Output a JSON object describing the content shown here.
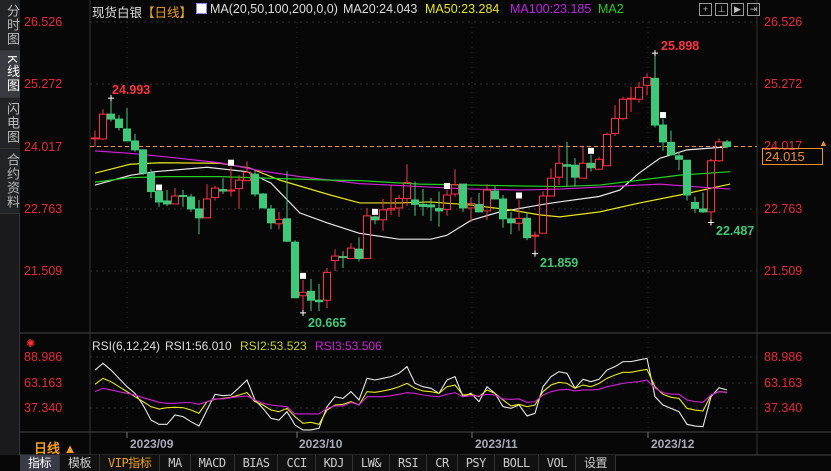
{
  "sidebar": {
    "tabs": [
      {
        "label": "分时图"
      },
      {
        "label": "K线图",
        "active": true
      },
      {
        "label": "闪电图"
      },
      {
        "label": "合约资料"
      }
    ]
  },
  "header": {
    "instrument": "现货白银",
    "period": "【日线】",
    "ma_params": "MA(20,50,100,200,0,0)",
    "ma20": "MA20:24.043",
    "ma50": "MA50:23.284",
    "ma100": "MA100:23.185",
    "ma200": "MA2",
    "toolbar_icons": [
      "crosshair-icon",
      "interval-icon",
      "play-icon",
      "shift-right-icon"
    ]
  },
  "colors": {
    "up": "#ff3040",
    "down": "#3ec87a",
    "ma20": "#e8e8e8",
    "ma50": "#e6e61a",
    "ma100": "#d020d8",
    "ma200": "#20d020",
    "rsi1": "#e8e8e8",
    "rsi2": "#e6e61a",
    "rsi3": "#d020d8",
    "last_price": "#f0902a",
    "axis_label": "#e8283c"
  },
  "price_axis": {
    "ticks": [
      "26.526",
      "25.272",
      "24.017",
      "22.763",
      "21.509"
    ],
    "last_price": "24.015"
  },
  "annotations": {
    "high1": "24.993",
    "high2": "25.898",
    "low1": "20.665",
    "low2": "21.859",
    "low3": "22.487"
  },
  "rsi": {
    "title": "RSI(6,12,24)",
    "rsi1": "RSI1:56.010",
    "rsi2": "RSI2:53.523",
    "rsi3": "RSI3:53.506",
    "ticks": [
      "88.986",
      "63.163",
      "37.340"
    ]
  },
  "x_axis": {
    "period_label": "日线 ▲",
    "dates": [
      "2023/09",
      "2023/10",
      "2023/11",
      "2023/12"
    ]
  },
  "bottom_tabs": [
    "指标",
    "模板",
    "VIP指标",
    "MA",
    "MACD",
    "BIAS",
    "CCI",
    "KDJ",
    "LW&",
    "RSI",
    "CR",
    "PSY",
    "BOLL",
    "VOL",
    "设置"
  ],
  "chart_data": {
    "type": "candlestick",
    "candles_ohlc": [
      [
        24.19,
        24.34,
        24.01,
        24.19
      ],
      [
        24.17,
        24.77,
        24.15,
        24.67
      ],
      [
        24.67,
        24.993,
        24.52,
        24.57
      ],
      [
        24.57,
        24.65,
        24.34,
        24.4
      ],
      [
        24.37,
        24.79,
        24.13,
        24.13
      ],
      [
        24.13,
        24.27,
        23.91,
        23.95
      ],
      [
        23.95,
        23.95,
        23.44,
        23.49
      ],
      [
        23.48,
        23.56,
        22.98,
        23.11
      ],
      [
        23.11,
        23.11,
        22.8,
        22.9
      ],
      [
        22.92,
        23.14,
        22.82,
        22.86
      ],
      [
        22.86,
        23.18,
        22.86,
        23.02
      ],
      [
        23.03,
        23.14,
        22.8,
        23.01
      ],
      [
        23.0,
        23.06,
        22.7,
        22.76
      ],
      [
        22.76,
        22.94,
        22.25,
        22.58
      ],
      [
        22.58,
        23.26,
        22.58,
        22.96
      ],
      [
        22.99,
        23.23,
        22.93,
        23.18
      ],
      [
        23.15,
        23.38,
        23.06,
        23.12
      ],
      [
        23.12,
        23.61,
        23.01,
        23.14
      ],
      [
        23.17,
        23.44,
        22.76,
        23.34
      ],
      [
        23.33,
        23.72,
        23.33,
        23.5
      ],
      [
        23.46,
        23.54,
        23.01,
        23.06
      ],
      [
        23.06,
        23.08,
        22.78,
        22.78
      ],
      [
        22.76,
        22.84,
        22.35,
        22.48
      ],
      [
        22.46,
        22.7,
        22.35,
        22.55
      ],
      [
        22.56,
        23.52,
        22.09,
        22.11
      ],
      [
        22.09,
        22.13,
        20.97,
        20.97
      ],
      [
        21.01,
        21.33,
        20.665,
        21.08
      ],
      [
        21.1,
        21.35,
        20.7,
        20.92
      ],
      [
        20.92,
        21.25,
        20.7,
        20.89
      ],
      [
        20.92,
        21.57,
        20.76,
        21.48
      ],
      [
        21.72,
        21.95,
        21.51,
        21.81
      ],
      [
        21.8,
        21.91,
        21.57,
        21.78
      ],
      [
        21.76,
        22.07,
        21.76,
        21.97
      ],
      [
        21.95,
        22.19,
        21.7,
        21.76
      ],
      [
        21.76,
        22.78,
        21.76,
        22.62
      ],
      [
        22.6,
        22.62,
        22.45,
        22.54
      ],
      [
        22.54,
        22.96,
        22.32,
        22.74
      ],
      [
        22.74,
        23.24,
        22.64,
        22.77
      ],
      [
        22.78,
        23.04,
        22.6,
        22.97
      ],
      [
        22.97,
        23.66,
        22.82,
        23.29
      ],
      [
        22.94,
        23.31,
        22.62,
        22.85
      ],
      [
        22.85,
        23.16,
        22.62,
        22.81
      ],
      [
        22.84,
        22.98,
        22.52,
        22.8
      ],
      [
        22.77,
        23.11,
        22.4,
        22.72
      ],
      [
        22.75,
        23.14,
        22.62,
        23.04
      ],
      [
        23.06,
        23.56,
        23.01,
        23.25
      ],
      [
        23.26,
        23.26,
        22.7,
        22.78
      ],
      [
        22.78,
        22.99,
        22.5,
        22.87
      ],
      [
        22.85,
        23.08,
        22.7,
        22.7
      ],
      [
        22.72,
        23.26,
        22.54,
        23.14
      ],
      [
        23.12,
        23.22,
        22.96,
        22.96
      ],
      [
        22.96,
        23.04,
        22.38,
        22.56
      ],
      [
        22.56,
        22.7,
        22.25,
        22.48
      ],
      [
        22.47,
        22.95,
        22.32,
        22.57
      ],
      [
        22.57,
        22.7,
        22.13,
        22.18
      ],
      [
        22.21,
        22.3,
        21.859,
        22.23
      ],
      [
        22.27,
        23.11,
        22.27,
        23.02
      ],
      [
        23.02,
        23.58,
        23.01,
        23.38
      ],
      [
        23.4,
        24.05,
        23.24,
        23.68
      ],
      [
        23.65,
        24.11,
        23.21,
        23.62
      ],
      [
        23.64,
        23.78,
        23.21,
        23.4
      ],
      [
        23.38,
        24.01,
        23.38,
        23.68
      ],
      [
        23.68,
        23.85,
        23.51,
        23.59
      ],
      [
        23.56,
        23.81,
        23.54,
        23.76
      ],
      [
        23.63,
        24.3,
        23.63,
        24.26
      ],
      [
        24.28,
        24.85,
        24.23,
        24.58
      ],
      [
        24.58,
        25.02,
        24.55,
        24.97
      ],
      [
        24.97,
        25.22,
        24.71,
        24.99
      ],
      [
        24.97,
        25.32,
        24.9,
        25.21
      ],
      [
        25.25,
        25.49,
        25.05,
        25.41
      ],
      [
        25.39,
        25.898,
        24.4,
        24.45
      ],
      [
        24.45,
        24.57,
        23.93,
        24.11
      ],
      [
        24.1,
        24.34,
        23.85,
        23.85
      ],
      [
        23.83,
        23.91,
        23.54,
        23.76
      ],
      [
        23.74,
        23.74,
        22.93,
        23.04
      ],
      [
        22.89,
        23.01,
        22.68,
        22.77
      ],
      [
        22.76,
        23.09,
        22.68,
        22.7
      ],
      [
        22.7,
        23.77,
        22.487,
        23.73
      ],
      [
        23.73,
        24.18,
        23.71,
        24.11
      ],
      [
        24.11,
        24.15,
        23.98,
        24.015
      ]
    ],
    "marked_candles": [
      8,
      17,
      26,
      35,
      44,
      53,
      62,
      71
    ],
    "ma_series": {
      "MA20": [
        [
          0,
          23.24
        ],
        [
          4.5,
          23.44
        ],
        [
          7.5,
          23.51
        ],
        [
          14,
          23.6
        ],
        [
          19,
          23.51
        ],
        [
          22,
          23.28
        ],
        [
          25.6,
          22.68
        ],
        [
          29,
          22.48
        ],
        [
          33,
          22.27
        ],
        [
          38,
          22.15
        ],
        [
          42,
          22.15
        ],
        [
          44,
          22.23
        ],
        [
          47,
          22.53
        ],
        [
          50.6,
          22.7
        ],
        [
          55.6,
          22.84
        ],
        [
          58,
          22.9
        ],
        [
          63,
          23.01
        ],
        [
          65.6,
          23.14
        ],
        [
          68,
          23.48
        ],
        [
          70.6,
          23.78
        ],
        [
          74,
          23.95
        ],
        [
          79,
          24.01
        ]
      ],
      "MA50": [
        [
          0,
          23.48
        ],
        [
          4.4,
          23.66
        ],
        [
          8.1,
          23.69
        ],
        [
          15.6,
          23.68
        ],
        [
          19.4,
          23.58
        ],
        [
          23.1,
          23.34
        ],
        [
          29.4,
          23.04
        ],
        [
          33.1,
          22.88
        ],
        [
          38.1,
          22.88
        ],
        [
          41.9,
          22.9
        ],
        [
          46.9,
          22.84
        ],
        [
          51.9,
          22.74
        ],
        [
          55.6,
          22.64
        ],
        [
          58.1,
          22.6
        ],
        [
          63.1,
          22.7
        ],
        [
          68.1,
          22.88
        ],
        [
          73.1,
          23.04
        ],
        [
          79.4,
          23.26
        ]
      ],
      "MA100": [
        [
          0,
          23.93
        ],
        [
          4.4,
          23.88
        ],
        [
          9.4,
          23.8
        ],
        [
          15.6,
          23.69
        ],
        [
          20.6,
          23.53
        ],
        [
          25.6,
          23.41
        ],
        [
          29.4,
          23.34
        ],
        [
          33.1,
          23.27
        ],
        [
          40.6,
          23.21
        ],
        [
          46.9,
          23.16
        ],
        [
          53.1,
          23.14
        ],
        [
          58.1,
          23.16
        ],
        [
          65.6,
          23.22
        ],
        [
          70.6,
          23.26
        ],
        [
          75.6,
          23.2
        ],
        [
          79.4,
          23.16
        ]
      ],
      "MA200": [
        [
          0,
          23.3
        ],
        [
          4.4,
          23.39
        ],
        [
          8.75,
          23.41
        ],
        [
          15.6,
          23.41
        ],
        [
          29.4,
          23.34
        ],
        [
          33.1,
          23.33
        ],
        [
          40.6,
          23.26
        ],
        [
          50.6,
          23.23
        ],
        [
          58.1,
          23.21
        ],
        [
          63.1,
          23.24
        ],
        [
          68.1,
          23.34
        ],
        [
          73.1,
          23.44
        ],
        [
          79.4,
          23.51
        ]
      ]
    },
    "rsi_series": {
      "RSI1": [
        76.1,
        82.9,
        76.1,
        67.7,
        59.2,
        52.5,
        40.7,
        25.5,
        21.1,
        21.1,
        30.6,
        28.9,
        23.8,
        19.4,
        35.6,
        51.5,
        50.1,
        50.8,
        58.2,
        66.0,
        45.8,
        37.3,
        27.2,
        25.5,
        33.9,
        20.4,
        15.4,
        15.4,
        17.1,
        39.0,
        49.1,
        47.4,
        54.2,
        45.8,
        67.7,
        66.0,
        67.7,
        69.4,
        72.8,
        79.5,
        62.6,
        59.2,
        57.6,
        52.5,
        66.0,
        69.4,
        49.1,
        52.5,
        44.1,
        59.2,
        52.5,
        39.0,
        37.3,
        40.7,
        29.6,
        32.3,
        59.2,
        69.4,
        74.4,
        72.7,
        57.6,
        66.7,
        64.3,
        66.7,
        76.1,
        79.5,
        84.6,
        84.6,
        86.3,
        87.9,
        49.1,
        40.7,
        37.3,
        33.9,
        21.1,
        19.4,
        18.7,
        49.1,
        58.2,
        56.01
      ],
      "RSI2": [
        61.6,
        67.7,
        64.3,
        59.2,
        54.2,
        49.1,
        44.1,
        39.0,
        36.6,
        38.0,
        38.3,
        38.0,
        35.6,
        32.3,
        44.1,
        46.4,
        47.4,
        48.5,
        50.8,
        53.2,
        44.1,
        40.7,
        35.6,
        33.9,
        37.3,
        28.9,
        22.1,
        23.1,
        21.1,
        35.6,
        40.7,
        41.4,
        44.1,
        40.7,
        54.2,
        53.5,
        54.9,
        56.6,
        59.2,
        62.6,
        57.6,
        54.9,
        54.2,
        52.5,
        59.2,
        60.9,
        50.8,
        51.5,
        49.1,
        55.9,
        52.5,
        45.8,
        39.7,
        41.4,
        39.0,
        40.7,
        54.2,
        60.9,
        63.6,
        62.6,
        57.6,
        60.9,
        59.2,
        62.6,
        67.7,
        71.1,
        73.8,
        73.8,
        75.4,
        76.8,
        59.2,
        51.5,
        48.5,
        47.4,
        37.3,
        35.6,
        34.6,
        50.8,
        54.2,
        53.523
      ],
      "RSI3": [
        54.2,
        57.6,
        55.9,
        54.2,
        52.5,
        50.8,
        48.1,
        45.8,
        43.4,
        42.4,
        42.4,
        43.1,
        43.1,
        41.4,
        44.1,
        46.8,
        46.8,
        48.1,
        49.1,
        49.8,
        45.8,
        42.4,
        40.7,
        39.7,
        39.0,
        31.6,
        31.6,
        31.6,
        31.6,
        37.3,
        39.7,
        39.7,
        43.4,
        40.7,
        49.1,
        49.1,
        49.1,
        50.1,
        51.5,
        53.2,
        52.5,
        50.8,
        49.8,
        49.1,
        51.5,
        53.2,
        49.1,
        50.1,
        49.8,
        51.5,
        50.8,
        46.8,
        46.4,
        46.8,
        43.4,
        44.1,
        50.8,
        54.2,
        55.9,
        56.6,
        54.9,
        55.9,
        55.9,
        56.6,
        59.2,
        60.9,
        62.6,
        63.6,
        64.3,
        66.0,
        57.6,
        53.2,
        51.8,
        51.5,
        45.8,
        44.1,
        43.4,
        50.8,
        54.2,
        53.506
      ]
    },
    "price_range": [
      20.5,
      26.6
    ],
    "rsi_range": [
      10,
      95
    ]
  }
}
